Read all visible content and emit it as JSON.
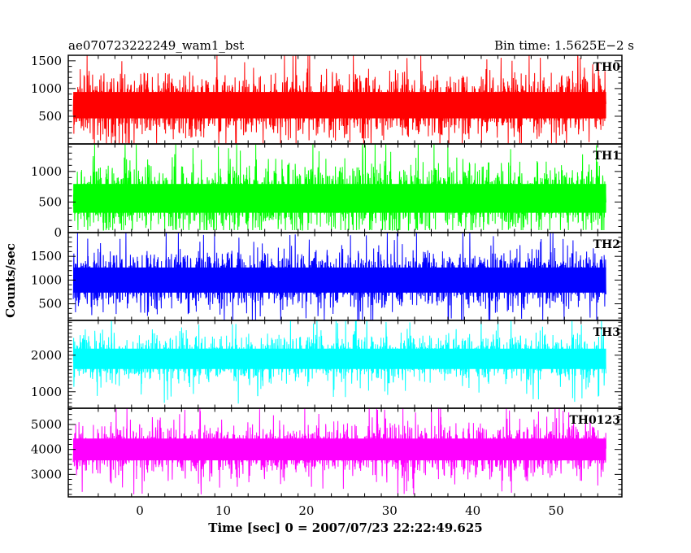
{
  "header": {
    "title": "ae070723222249_wam1_bst",
    "bin_time": "Bin time: 1.5625E−2 s"
  },
  "y_axis_label": "Counts/sec",
  "x_axis_label": "Time [sec] 0 = 2007/07/23 22:22:49.625",
  "chart_data": [
    {
      "type": "line",
      "name": "TH0",
      "color": "#ff0000",
      "xlim": [
        -8.6,
        57.9
      ],
      "ylim": [
        0,
        1600
      ],
      "x_ticks": [
        0,
        10,
        20,
        30,
        40,
        50
      ],
      "y_ticks": [
        500,
        1000,
        1500
      ],
      "series": [
        {
          "name": "TH0",
          "x_range": [
            -8.0,
            56.0
          ],
          "bin_time": 0.015625,
          "mean": 700,
          "min": 10,
          "max": 1600
        }
      ]
    },
    {
      "type": "line",
      "name": "TH1",
      "color": "#00ff00",
      "xlim": [
        -8.6,
        57.9
      ],
      "ylim": [
        0,
        1450
      ],
      "x_ticks": [
        0,
        10,
        20,
        30,
        40,
        50
      ],
      "y_ticks": [
        0,
        500,
        1000
      ],
      "series": [
        {
          "name": "TH1",
          "x_range": [
            -8.0,
            56.0
          ],
          "bin_time": 0.015625,
          "mean": 560,
          "min": 40,
          "max": 1450
        }
      ]
    },
    {
      "type": "line",
      "name": "TH2",
      "color": "#0000ff",
      "xlim": [
        -8.6,
        57.9
      ],
      "ylim": [
        150,
        2000
      ],
      "x_ticks": [
        0,
        10,
        20,
        30,
        40,
        50
      ],
      "y_ticks": [
        500,
        1000,
        1500
      ],
      "series": [
        {
          "name": "TH2",
          "x_range": [
            -8.0,
            56.0
          ],
          "bin_time": 0.015625,
          "mean": 1000,
          "min": 150,
          "max": 2000
        }
      ]
    },
    {
      "type": "line",
      "name": "TH3",
      "color": "#00ffff",
      "xlim": [
        -8.6,
        57.9
      ],
      "ylim": [
        550,
        2950
      ],
      "x_ticks": [
        0,
        10,
        20,
        30,
        40,
        50
      ],
      "y_ticks": [
        1000,
        2000
      ],
      "series": [
        {
          "name": "TH3",
          "x_range": [
            -8.0,
            56.0
          ],
          "bin_time": 0.015625,
          "mean": 1900,
          "min": 600,
          "max": 2950
        }
      ]
    },
    {
      "type": "line",
      "name": "TH0123",
      "color": "#ff00ff",
      "xlim": [
        -8.6,
        57.9
      ],
      "ylim": [
        2100,
        5650
      ],
      "x_ticks": [
        0,
        10,
        20,
        30,
        40,
        50
      ],
      "y_ticks": [
        3000,
        4000,
        5000
      ],
      "series": [
        {
          "name": "TH0123",
          "x_range": [
            -8.0,
            56.0
          ],
          "bin_time": 0.015625,
          "mean": 4000,
          "min": 2200,
          "max": 5650
        }
      ]
    }
  ]
}
